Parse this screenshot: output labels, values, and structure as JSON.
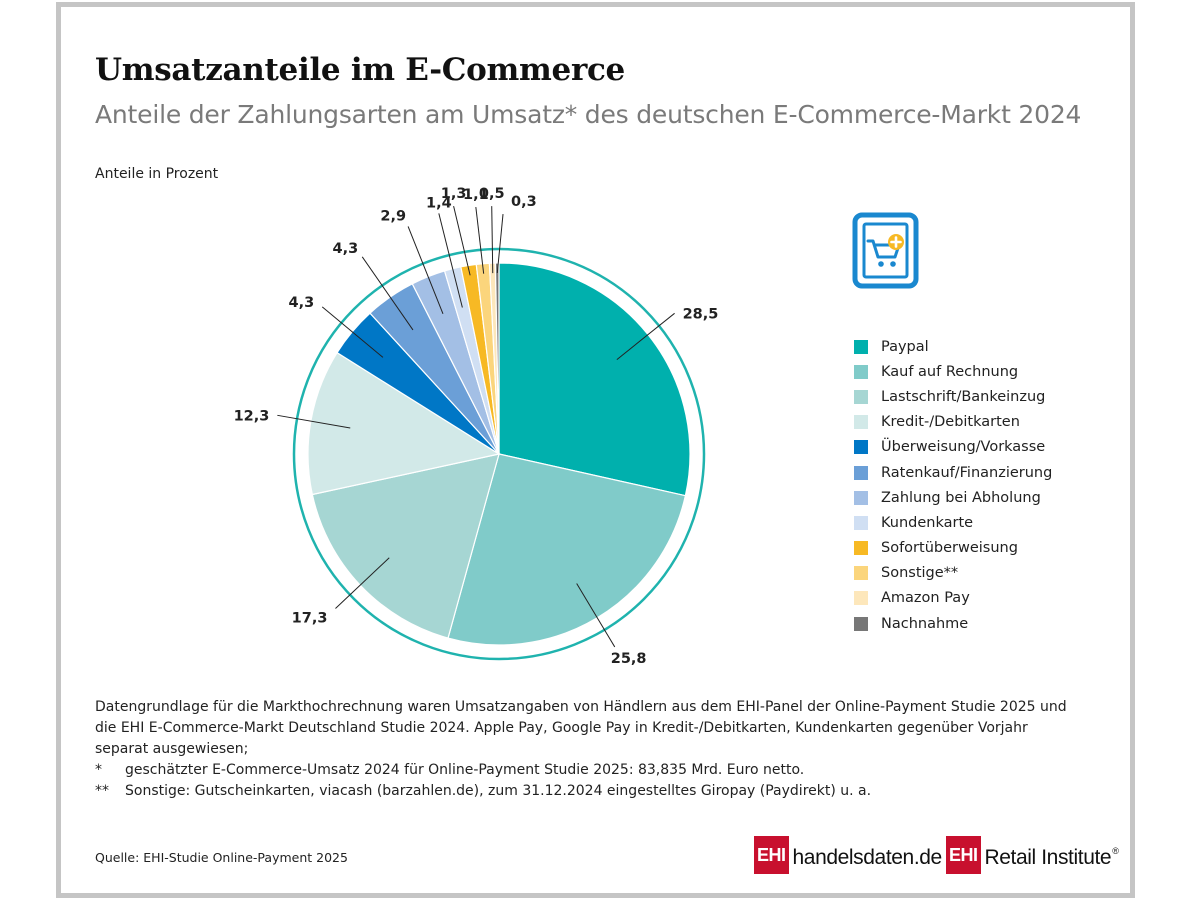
{
  "title": "Umsatzanteile im E-Commerce",
  "subtitle": "Anteile der Zahlungsarten am Umsatz* des deutschen E-Commerce-Markt 2024",
  "unit_label": "Anteile in Prozent",
  "chart_data": {
    "type": "pie",
    "title": "Umsatzanteile im E-Commerce",
    "subtitle": "Anteile der Zahlungsarten am Umsatz* des deutschen E-Commerce-Markt 2024",
    "unit": "Anteile in Prozent",
    "legend_position": "right",
    "categories": [
      "Paypal",
      "Kauf auf Rechnung",
      "Lastschrift/Bankeinzug",
      "Kredit-/Debitkarten",
      "Überweisung/Vorkasse",
      "Ratenkauf/Finanzierung",
      "Zahlung bei Abholung",
      "Kundenkarte",
      "Sofortüberweisung",
      "Sonstige**",
      "Amazon Pay",
      "Nachnahme"
    ],
    "values": [
      28.5,
      25.8,
      17.3,
      12.3,
      4.3,
      4.3,
      2.9,
      1.4,
      1.3,
      1.1,
      0.5,
      0.3
    ],
    "value_labels": [
      "28,5",
      "25,8",
      "17,3",
      "12,3",
      "4,3",
      "4,3",
      "2,9",
      "1,4",
      "1,3",
      "1,1",
      "0,5",
      "0,3"
    ],
    "colors": [
      "#00b0ad",
      "#80cbc9",
      "#a6d6d3",
      "#d2e9e8",
      "#0077c6",
      "#6b9fd7",
      "#a3bfe5",
      "#d0dff3",
      "#f7b924",
      "#fbd57c",
      "#fde7bb",
      "#777777"
    ]
  },
  "notes": {
    "main": "Datengrundlage für die Markthochrechnung waren Umsatzangaben von Händlern aus dem EHI-Panel der Online-Payment Studie 2025 und die EHI E-Commerce-Markt Deutschland Studie 2024. Apple Pay, Google Pay in Kredit-/Debitkarten, Kundenkarten gegenüber Vorjahr separat ausgewiesen;",
    "fn1_marker": "*",
    "fn1_text": "geschätzter E-Commerce-Umsatz 2024 für Online-Payment Studie 2025: 83,835 Mrd. Euro netto.",
    "fn2_marker": "**",
    "fn2_text": "Sonstige: Gutscheinkarten, viacash (barzahlen.de), zum 31.12.2024 eingestelltes Giropay (Paydirekt) u. a."
  },
  "source": "Quelle: EHI-Studie Online-Payment 2025",
  "logos": {
    "ehi_box": "EHI",
    "handelsdaten": "handelsdaten.de",
    "retail_institute": "Retail Institute",
    "registered": "®"
  },
  "icon": "shopping-cart-plus-icon",
  "accent_color": "#1a88cf"
}
